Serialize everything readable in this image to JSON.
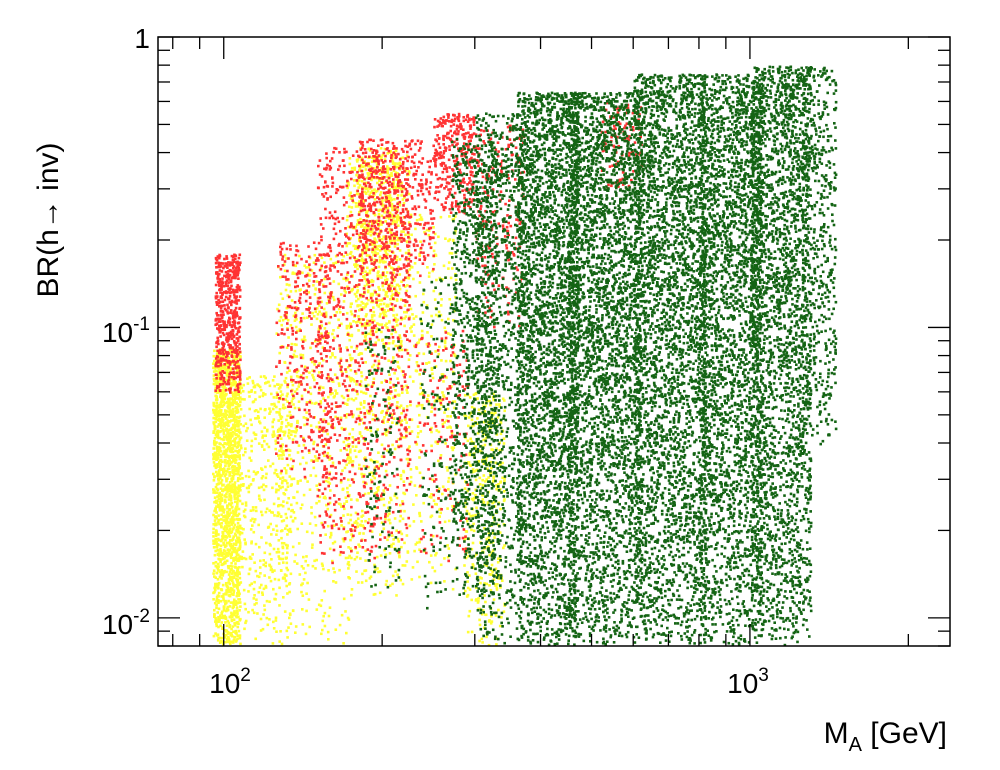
{
  "chart_data": {
    "type": "scatter",
    "title": "",
    "xlabel": {
      "main": "M",
      "sub": "A",
      "rest": " [GeV]"
    },
    "ylabel": "BR(h→ inv)",
    "xscale": "log",
    "yscale": "log",
    "xlim": [
      75,
      2400
    ],
    "ylim": [
      0.008,
      1.0
    ],
    "grid": false,
    "legend": "none",
    "x_ticks": [
      {
        "value": 100,
        "base": "10",
        "exp": "2"
      },
      {
        "value": 1000,
        "base": "10",
        "exp": "3"
      }
    ],
    "y_ticks": [
      {
        "value": 0.01,
        "base": "10",
        "exp": "-2"
      },
      {
        "value": 0.1,
        "base": "10",
        "exp": "-1"
      },
      {
        "value": 1,
        "base": "1",
        "exp": ""
      }
    ],
    "series": [
      {
        "color": "#ffff33",
        "clusters": [
          {
            "x": [
              95,
              107
            ],
            "y": [
              0.008,
              0.085
            ],
            "density": 1500
          },
          {
            "x": [
              103,
              135
            ],
            "y": [
              0.008,
              0.07
            ],
            "density": 500
          },
          {
            "x": [
              125,
              175
            ],
            "y": [
              0.008,
              0.18
            ],
            "density": 600
          },
          {
            "x": [
              170,
              225
            ],
            "y": [
              0.012,
              0.4
            ],
            "density": 800
          },
          {
            "x": [
              178,
              215
            ],
            "y": [
              0.1,
              0.42
            ],
            "density": 400
          },
          {
            "x": [
              225,
              275
            ],
            "y": [
              0.012,
              0.25
            ],
            "density": 300
          },
          {
            "x": [
              285,
              340
            ],
            "y": [
              0.008,
              0.06
            ],
            "density": 350
          }
        ]
      },
      {
        "color": "#ff3333",
        "clusters": [
          {
            "x": [
              96,
              107
            ],
            "y": [
              0.06,
              0.18
            ],
            "density": 500
          },
          {
            "x": [
              125,
              160
            ],
            "y": [
              0.03,
              0.2
            ],
            "density": 300
          },
          {
            "x": [
              150,
              225
            ],
            "y": [
              0.015,
              0.42
            ],
            "density": 900
          },
          {
            "x": [
              180,
              250
            ],
            "y": [
              0.15,
              0.45
            ],
            "density": 400
          },
          {
            "x": [
              250,
              300
            ],
            "y": [
              0.25,
              0.55
            ],
            "density": 300
          },
          {
            "x": [
              230,
              290
            ],
            "y": [
              0.015,
              0.1
            ],
            "density": 150
          },
          {
            "x": [
              300,
              370
            ],
            "y": [
              0.1,
              0.5
            ],
            "density": 200
          },
          {
            "x": [
              520,
              620
            ],
            "y": [
              0.3,
              0.6
            ],
            "density": 100
          }
        ]
      },
      {
        "color": "#146414",
        "clusters": [
          {
            "x": [
              185,
              215
            ],
            "y": [
              0.012,
              0.1
            ],
            "density": 120
          },
          {
            "x": [
              235,
              275
            ],
            "y": [
              0.01,
              0.15
            ],
            "density": 120
          },
          {
            "x": [
              270,
              330
            ],
            "y": [
              0.012,
              0.45
            ],
            "density": 900
          },
          {
            "x": [
              300,
              370
            ],
            "y": [
              0.008,
              0.55
            ],
            "density": 1000
          },
          {
            "x": [
              360,
              470
            ],
            "y": [
              0.008,
              0.65
            ],
            "density": 3000
          },
          {
            "x": [
              450,
              620
            ],
            "y": [
              0.008,
              0.65
            ],
            "density": 3200
          },
          {
            "x": [
              600,
              820
            ],
            "y": [
              0.008,
              0.75
            ],
            "density": 3200
          },
          {
            "x": [
              800,
              1050
            ],
            "y": [
              0.008,
              0.75
            ],
            "density": 2800
          },
          {
            "x": [
              1000,
              1300
            ],
            "y": [
              0.008,
              0.8
            ],
            "density": 2500
          },
          {
            "x": [
              1250,
              1450
            ],
            "y": [
              0.04,
              0.8
            ],
            "density": 500
          }
        ]
      }
    ]
  }
}
